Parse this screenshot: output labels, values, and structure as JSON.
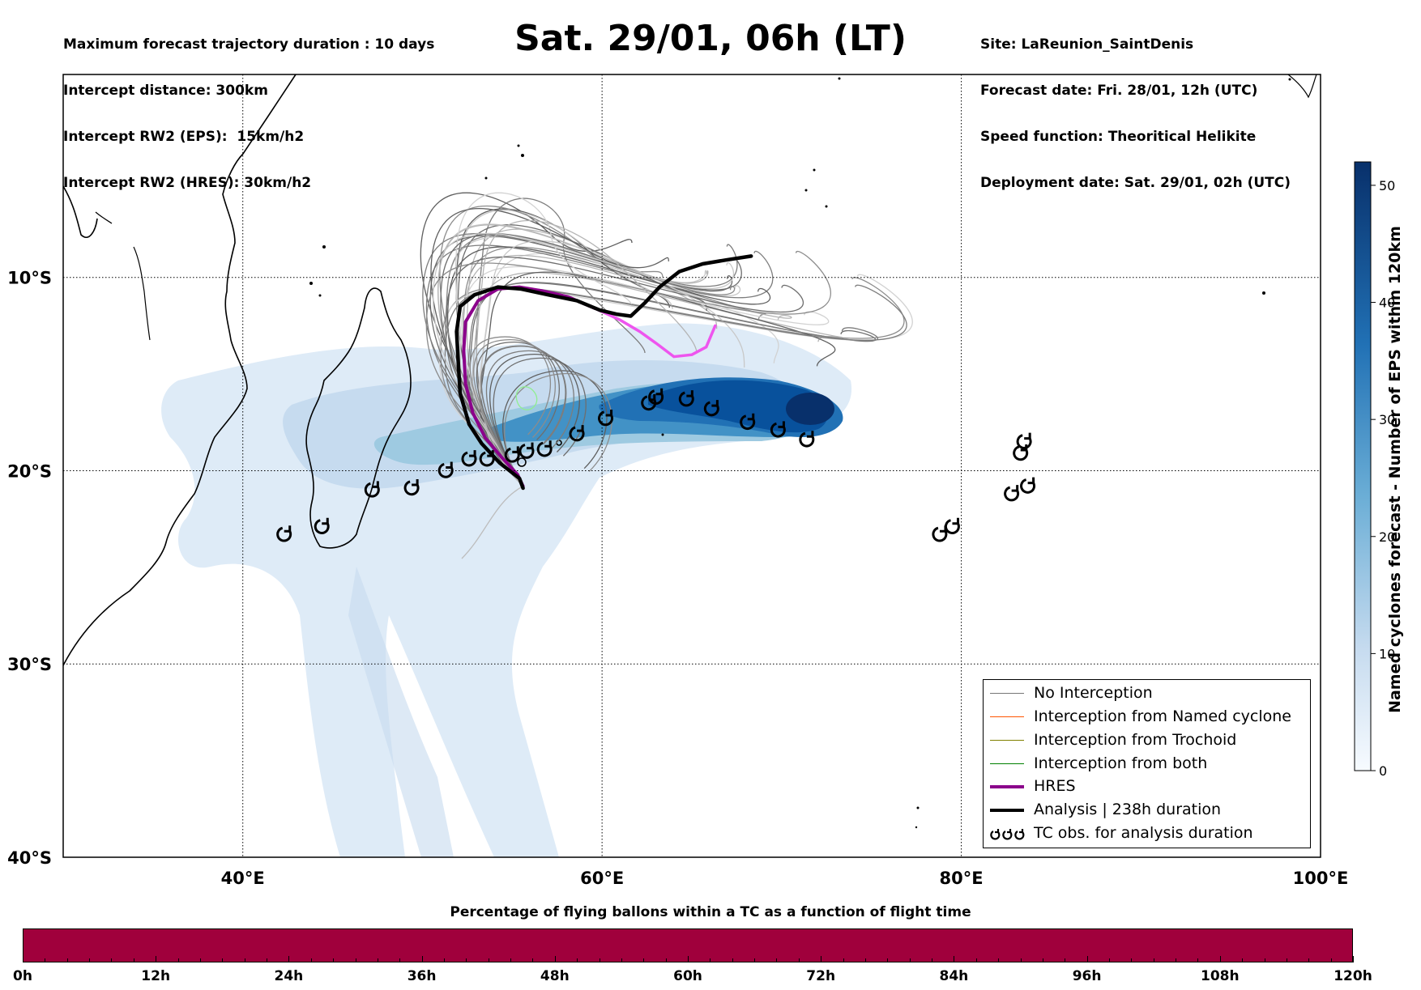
{
  "header": {
    "left_lines": [
      "Maximum forecast trajectory duration : 10 days",
      "Intercept distance: 300km",
      "Intercept RW2 (EPS):  15km/h2",
      "Intercept RW2 (HRES): 30km/h2"
    ],
    "title": "Sat. 29/01, 06h (LT)",
    "right_lines": [
      "Site: LaReunion_SaintDenis",
      "Forecast date: Fri. 28/01, 12h (UTC)",
      "Speed function: Theoritical Helikite",
      "Deployment date: Sat. 29/01, 02h (UTC)"
    ]
  },
  "map": {
    "lat_labels": [
      "10°S",
      "20°S",
      "30°S",
      "40°S"
    ],
    "lon_labels": [
      "40°E",
      "60°E",
      "80°E",
      "100°E"
    ],
    "extent": {
      "lon_min": 30,
      "lon_max": 100,
      "lat_max": 0.5,
      "lat_min": -40
    },
    "lat_lines": [
      -10,
      -20,
      -30
    ],
    "lon_lines": [
      40,
      60,
      80
    ],
    "colors": {
      "analysis": "#000000",
      "hres_early": "#8b008b",
      "hres_late": "#ee55ee",
      "no_interception": "#777777",
      "eps_light": "#c8c8c8",
      "density_dark": "#08306b",
      "density_light": "#deebf7"
    },
    "analysis_track": [
      [
        68.3,
        -8.9
      ],
      [
        66.9,
        -9.1
      ],
      [
        65.6,
        -9.3
      ],
      [
        64.3,
        -9.7
      ],
      [
        63.2,
        -10.5
      ],
      [
        62.4,
        -11.3
      ],
      [
        61.6,
        -12.0
      ],
      [
        60.8,
        -11.9
      ],
      [
        59.9,
        -11.7
      ],
      [
        58.6,
        -11.2
      ],
      [
        57.0,
        -10.9
      ],
      [
        55.5,
        -10.6
      ],
      [
        54.2,
        -10.5
      ],
      [
        52.9,
        -10.9
      ],
      [
        52.1,
        -11.5
      ],
      [
        51.9,
        -12.8
      ],
      [
        52.0,
        -14.5
      ],
      [
        52.1,
        -16.0
      ],
      [
        52.6,
        -17.6
      ],
      [
        53.3,
        -18.6
      ],
      [
        54.3,
        -19.6
      ],
      [
        55.4,
        -20.4
      ],
      [
        55.6,
        -20.9
      ]
    ],
    "hres_track": [
      [
        66.3,
        -12.5
      ],
      [
        65.8,
        -13.6
      ],
      [
        65.0,
        -14.0
      ],
      [
        64.0,
        -14.1
      ],
      [
        63.0,
        -13.4
      ],
      [
        62.1,
        -12.8
      ],
      [
        61.0,
        -12.2
      ],
      [
        59.6,
        -11.6
      ],
      [
        58.1,
        -11.0
      ],
      [
        56.7,
        -10.7
      ],
      [
        55.4,
        -10.5
      ],
      [
        54.2,
        -10.6
      ],
      [
        53.1,
        -11.2
      ],
      [
        52.4,
        -12.3
      ],
      [
        52.3,
        -13.8
      ],
      [
        52.4,
        -15.5
      ],
      [
        52.8,
        -17.0
      ],
      [
        53.5,
        -18.3
      ],
      [
        54.4,
        -19.3
      ],
      [
        55.3,
        -20.2
      ],
      [
        55.6,
        -20.8
      ]
    ],
    "tc_obs": [
      [
        42.3,
        -23.3
      ],
      [
        44.4,
        -22.9
      ],
      [
        47.2,
        -21.0
      ],
      [
        49.4,
        -20.9
      ],
      [
        51.3,
        -20.0
      ],
      [
        52.6,
        -19.4
      ],
      [
        53.6,
        -19.4
      ],
      [
        55.0,
        -19.2
      ],
      [
        55.8,
        -19.0
      ],
      [
        56.8,
        -18.9
      ],
      [
        58.6,
        -18.1
      ],
      [
        60.2,
        -17.3
      ],
      [
        62.6,
        -16.5
      ],
      [
        63.0,
        -16.2
      ],
      [
        64.7,
        -16.3
      ],
      [
        66.1,
        -16.8
      ],
      [
        68.1,
        -17.5
      ],
      [
        69.8,
        -17.9
      ],
      [
        71.4,
        -18.4
      ],
      [
        78.8,
        -23.3
      ],
      [
        79.5,
        -22.9
      ],
      [
        82.8,
        -21.2
      ],
      [
        83.7,
        -20.8
      ],
      [
        83.3,
        -19.1
      ],
      [
        83.5,
        -18.5
      ]
    ],
    "colorbar": {
      "label": "Named cyclones forecast - Number of EPS within 120km",
      "ticks": [
        "0",
        "10",
        "20",
        "30",
        "40",
        "50"
      ],
      "min": 0,
      "max": 52
    }
  },
  "legend": {
    "items": [
      {
        "label": "No Interception",
        "color": "#777777"
      },
      {
        "label": "Interception from Named cyclone",
        "color": "#ff5500"
      },
      {
        "label": "Interception from Trochoid",
        "color": "#808000"
      },
      {
        "label": "Interception from both",
        "color": "#008000"
      },
      {
        "label": "HRES",
        "color": "#8b008b"
      },
      {
        "label": "Analysis | 238h duration",
        "color": "#000000"
      },
      {
        "label": "TC obs. for analysis duration",
        "color": "#000000"
      }
    ]
  },
  "bottom": {
    "title": "Percentage of flying ballons within a TC as a function of flight time",
    "bar_color": "#a0003c",
    "ticks": [
      "0h",
      "12h",
      "24h",
      "36h",
      "48h",
      "60h",
      "72h",
      "84h",
      "96h",
      "108h",
      "120h"
    ]
  }
}
